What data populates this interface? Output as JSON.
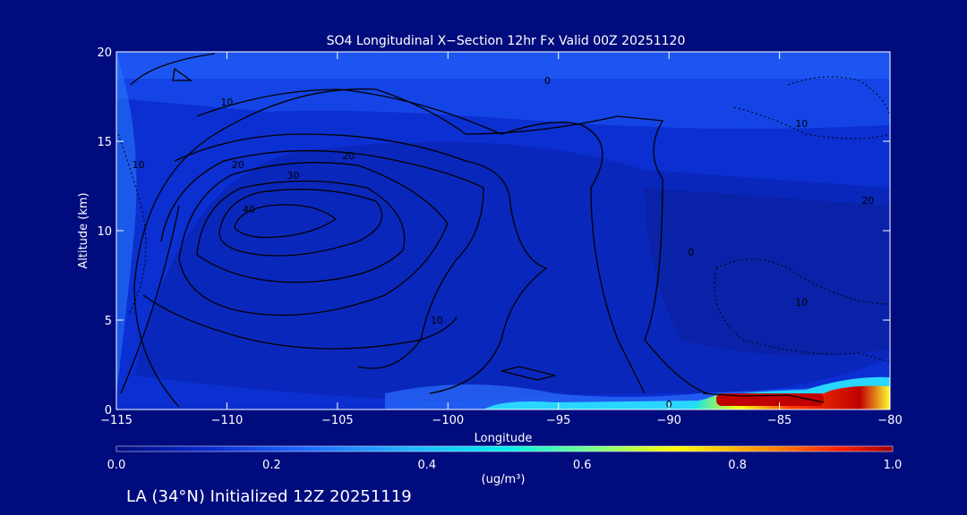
{
  "chart_data": {
    "type": "heatmap",
    "title": "SO4 Longitudinal X−Section 12hr  Fx Valid 00Z 20251120",
    "xlabel": "Longitude",
    "ylabel": "Altitude (km)",
    "xlim": [
      -115,
      -80
    ],
    "ylim": [
      0,
      20
    ],
    "x_ticks": [
      -115,
      -110,
      -105,
      -100,
      -95,
      -90,
      -85,
      -80
    ],
    "x_tick_labels": [
      "−115",
      "−110",
      "−105",
      "−100",
      "−95",
      "−90",
      "−85",
      "−80"
    ],
    "y_ticks": [
      0,
      5,
      10,
      15,
      20
    ],
    "y_tick_labels": [
      "0",
      "5",
      "10",
      "15",
      "20"
    ],
    "colorbar": {
      "label": "(ug/m³)",
      "range": [
        0.0,
        1.0
      ],
      "ticks": [
        0.0,
        0.2,
        0.4,
        0.6,
        0.8,
        1.0
      ],
      "tick_labels": [
        "0.0",
        "0.2",
        "0.4",
        "0.6",
        "0.8",
        "1.0"
      ]
    },
    "contour_labels": [
      "0",
      "10",
      "20",
      "30",
      "40",
      "20",
      "10",
      "0",
      "10",
      "20",
      "10",
      "10",
      "0"
    ],
    "contour_label_positions": [
      {
        "lon": -95.5,
        "alt": 18.2,
        "text": "0"
      },
      {
        "lon": -110.0,
        "alt": 17.0,
        "text": "10"
      },
      {
        "lon": -109.5,
        "alt": 13.5,
        "text": "20"
      },
      {
        "lon": -107.0,
        "alt": 12.9,
        "text": "30"
      },
      {
        "lon": -109.0,
        "alt": 11.0,
        "text": "40"
      },
      {
        "lon": -104.5,
        "alt": 14.0,
        "text": "20"
      },
      {
        "lon": -100.5,
        "alt": 4.8,
        "text": "10"
      },
      {
        "lon": -89.0,
        "alt": 8.6,
        "text": "0"
      },
      {
        "lon": -114.0,
        "alt": 13.5,
        "text": "10"
      },
      {
        "lon": -81.0,
        "alt": 11.5,
        "text": "20"
      },
      {
        "lon": -84.0,
        "alt": 15.8,
        "text": "10"
      },
      {
        "lon": -84.0,
        "alt": 5.8,
        "text": "10"
      },
      {
        "lon": -90.0,
        "alt": 0.1,
        "text": "0"
      }
    ],
    "annotation": "LA (34°N) Initialized 12Z 20251119"
  },
  "colors": {
    "background": "#000c7e",
    "field_low": "#0b2cc8",
    "field_mid": "#1848f0",
    "hotspot": [
      "#00ffff",
      "#ffff00",
      "#ff6000",
      "#c00000"
    ]
  }
}
